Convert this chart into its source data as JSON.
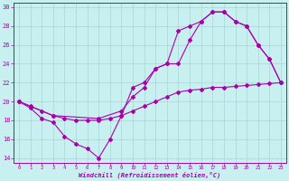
{
  "xlabel": "Windchill (Refroidissement éolien,°C)",
  "bg_color": "#c8f0f0",
  "line_color": "#aa00aa",
  "grid_color": "#aad4d4",
  "xmin": -0.5,
  "xmax": 23.5,
  "ymin": 13.5,
  "ymax": 30.5,
  "yticks": [
    14,
    16,
    18,
    20,
    22,
    24,
    26,
    28,
    30
  ],
  "xticks": [
    0,
    1,
    2,
    3,
    4,
    5,
    6,
    7,
    8,
    9,
    10,
    11,
    12,
    13,
    14,
    15,
    16,
    17,
    18,
    19,
    20,
    21,
    22,
    23
  ],
  "line1_x": [
    0,
    1,
    2,
    3,
    4,
    5,
    6,
    7,
    8,
    9,
    10,
    11,
    12,
    13,
    14,
    15,
    16,
    17,
    18,
    19,
    20,
    21,
    22,
    23
  ],
  "line1_y": [
    20.0,
    19.3,
    18.2,
    17.8,
    16.3,
    15.5,
    15.0,
    14.0,
    16.0,
    18.5,
    21.5,
    22.0,
    23.5,
    24.0,
    27.5,
    28.0,
    28.5,
    29.5,
    29.5,
    28.5,
    28.0,
    26.0,
    24.5,
    22.0
  ],
  "line2_x": [
    0,
    1,
    2,
    3,
    4,
    5,
    6,
    7,
    8,
    9,
    10,
    11,
    12,
    13,
    14,
    15,
    16,
    17,
    18,
    19,
    20,
    21,
    22,
    23
  ],
  "line2_y": [
    20.0,
    19.5,
    19.0,
    18.5,
    18.2,
    18.0,
    18.0,
    18.0,
    18.2,
    18.5,
    19.0,
    19.5,
    20.0,
    20.5,
    21.0,
    21.2,
    21.3,
    21.5,
    21.5,
    21.6,
    21.7,
    21.8,
    21.9,
    22.0
  ],
  "line3_x": [
    0,
    3,
    7,
    9,
    10,
    11,
    12,
    13,
    14,
    15,
    16,
    17,
    18,
    19,
    20,
    21,
    22,
    23
  ],
  "line3_y": [
    20.0,
    18.5,
    18.2,
    19.0,
    20.5,
    21.5,
    23.5,
    24.0,
    24.0,
    26.5,
    28.5,
    29.5,
    29.5,
    28.5,
    28.0,
    26.0,
    24.5,
    22.0
  ]
}
